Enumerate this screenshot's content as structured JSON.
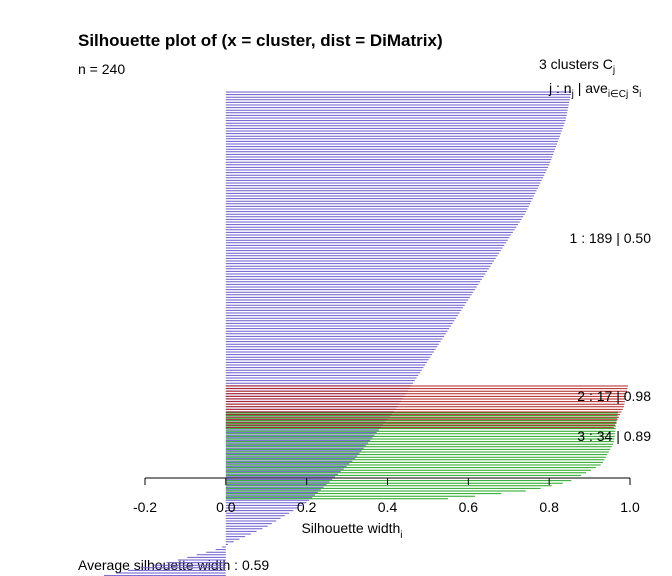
{
  "chart_data": {
    "type": "bar",
    "orientation": "horizontal",
    "title": "Silhouette plot of (x = cluster, dist = DiMatrix)",
    "n_label": "n = 240",
    "average_label": "Average silhouette width :  0.59",
    "xlabel": "Silhouette width",
    "xlabel_sub": "i",
    "xlim": [
      -0.2,
      1.0
    ],
    "x_ticks": [
      "-0.2",
      "0.0",
      "0.2",
      "0.4",
      "0.6",
      "0.8",
      "1.0"
    ],
    "header": {
      "clusters_line": "3  clusters  C",
      "clusters_sub": "j",
      "columns_line_j": "j :  n",
      "columns_line_j_sub": "j",
      "columns_line_ave": " | ave",
      "columns_line_ave_sub": "i∈Cj",
      "columns_line_s": "  s",
      "columns_line_s_sub": "i"
    },
    "clusters": [
      {
        "id": 1,
        "n": 189,
        "average": 0.5,
        "label": "1 :   189  |  0.50",
        "color": "#6A5ACD",
        "profile": [
          [
            0,
            0.855
          ],
          [
            0.06,
            0.84
          ],
          [
            0.15,
            0.8
          ],
          [
            0.25,
            0.74
          ],
          [
            0.35,
            0.66
          ],
          [
            0.45,
            0.58
          ],
          [
            0.55,
            0.5
          ],
          [
            0.65,
            0.42
          ],
          [
            0.75,
            0.32
          ],
          [
            0.84,
            0.2
          ],
          [
            0.89,
            0.1
          ],
          [
            0.92,
            0.02
          ],
          [
            0.935,
            -0.02
          ],
          [
            0.96,
            -0.13
          ],
          [
            0.98,
            -0.25
          ],
          [
            1.0,
            -0.36
          ]
        ]
      },
      {
        "id": 2,
        "n": 17,
        "average": 0.98,
        "label": "2 :   17  |  0.98",
        "color": "#B22222",
        "profile": [
          [
            0,
            0.995
          ],
          [
            0.5,
            0.985
          ],
          [
            1.0,
            0.96
          ]
        ]
      },
      {
        "id": 3,
        "n": 34,
        "average": 0.89,
        "label": "3 :   34  |  0.89",
        "color": "#22A622",
        "profile": [
          [
            0,
            0.97
          ],
          [
            0.35,
            0.96
          ],
          [
            0.6,
            0.93
          ],
          [
            0.8,
            0.85
          ],
          [
            0.9,
            0.76
          ],
          [
            0.95,
            0.66
          ],
          [
            1.0,
            0.55
          ]
        ]
      }
    ]
  }
}
